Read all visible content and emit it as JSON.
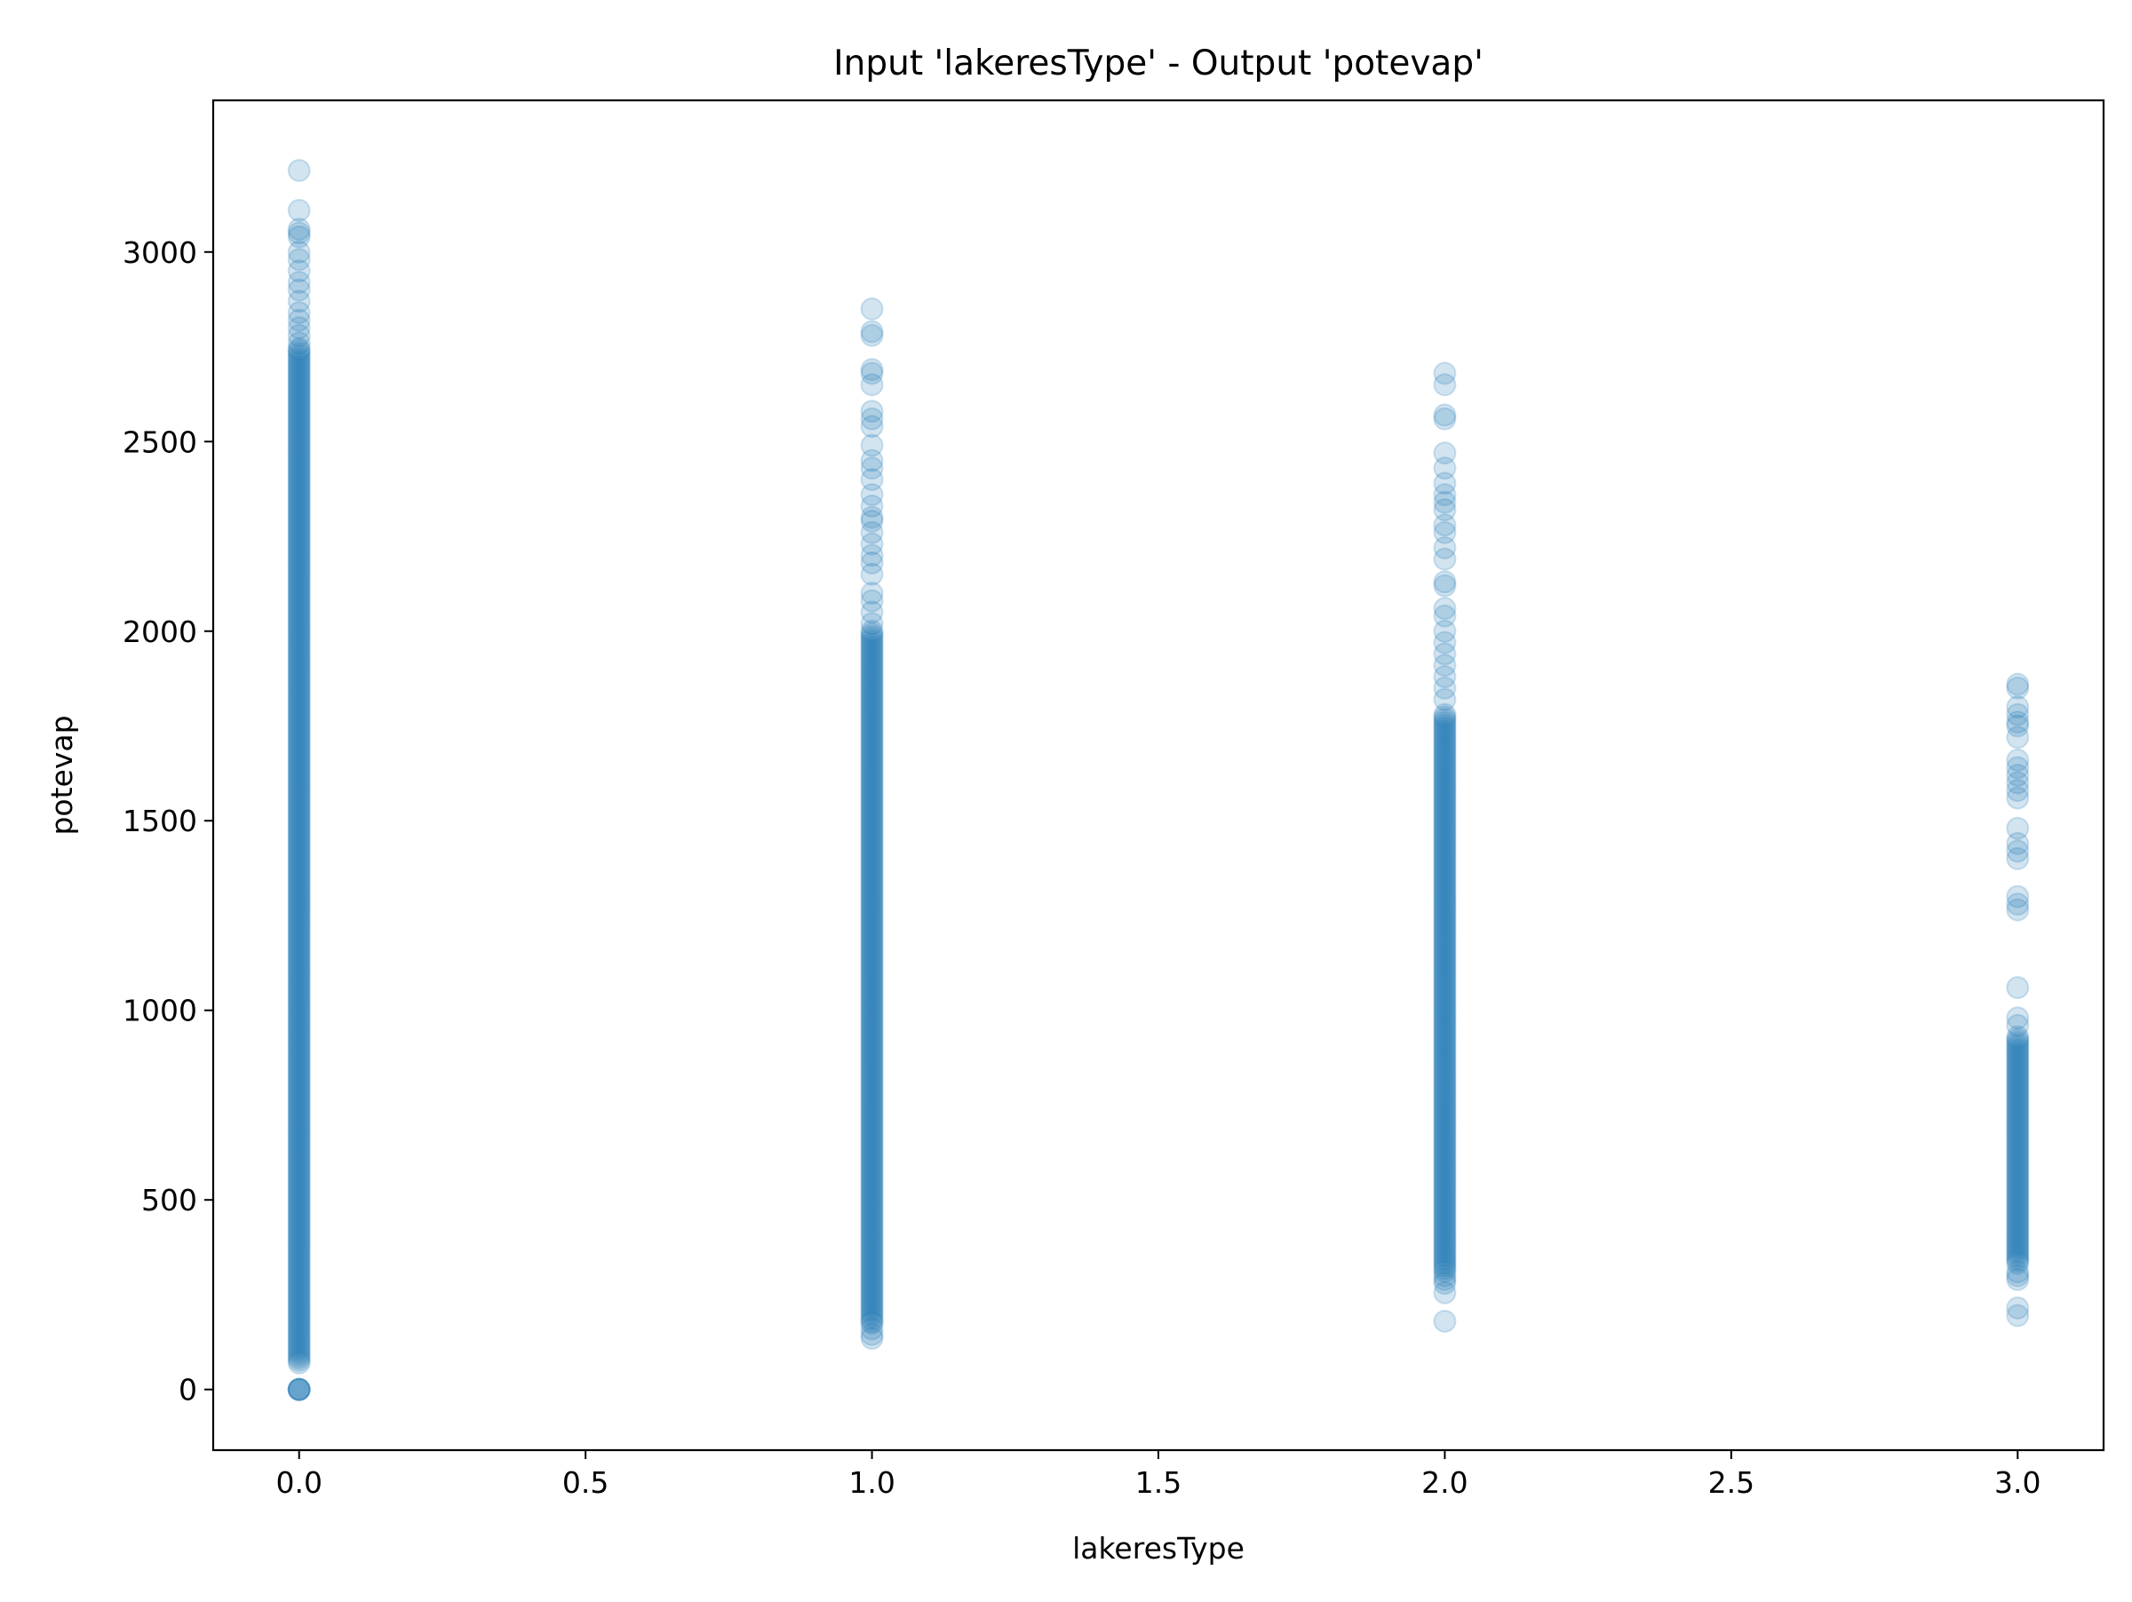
{
  "chart_data": {
    "type": "scatter",
    "title": "Input 'lakeresType' - Output 'potevap'",
    "xlabel": "lakeresType",
    "ylabel": "potevap",
    "xlim": [
      -0.15,
      3.15
    ],
    "ylim": [
      -160,
      3400
    ],
    "x_ticks": [
      0.0,
      0.5,
      1.0,
      1.5,
      2.0,
      2.5,
      3.0
    ],
    "x_tick_labels": [
      "0.0",
      "0.5",
      "1.0",
      "1.5",
      "2.0",
      "2.5",
      "3.0"
    ],
    "y_ticks": [
      0,
      500,
      1000,
      1500,
      2000,
      2500,
      3000
    ],
    "y_tick_labels": [
      "0",
      "500",
      "1000",
      "1500",
      "2000",
      "2500",
      "3000"
    ],
    "grid": false,
    "marker_color": "#1f77b4",
    "marker_alpha": 0.2,
    "groups": [
      {
        "x": 0,
        "dense_range": [
          65,
          2740
        ],
        "points": [
          0,
          0,
          0,
          0,
          0,
          2745,
          2760,
          2780,
          2800,
          2820,
          2840,
          2870,
          2900,
          2920,
          2950,
          2980,
          3000,
          3040,
          3050,
          3060,
          3110,
          3215
        ]
      },
      {
        "x": 1,
        "dense_range": [
          180,
          2000
        ],
        "points": [
          135,
          145,
          160,
          175,
          2020,
          2050,
          2080,
          2100,
          2150,
          2180,
          2200,
          2230,
          2260,
          2290,
          2300,
          2330,
          2360,
          2400,
          2430,
          2450,
          2490,
          2540,
          2560,
          2580,
          2650,
          2680,
          2690,
          2780,
          2790,
          2850
        ]
      },
      {
        "x": 2,
        "dense_range": [
          310,
          1780
        ],
        "points": [
          180,
          255,
          280,
          290,
          300,
          1820,
          1850,
          1880,
          1910,
          1940,
          1970,
          2000,
          2040,
          2060,
          2120,
          2130,
          2190,
          2220,
          2260,
          2280,
          2320,
          2340,
          2360,
          2390,
          2430,
          2470,
          2560,
          2570,
          2650,
          2680
        ]
      },
      {
        "x": 3,
        "dense_range": [
          330,
          930
        ],
        "points": [
          195,
          215,
          290,
          300,
          310,
          960,
          980,
          1060,
          1265,
          1280,
          1300,
          1400,
          1420,
          1440,
          1480,
          1560,
          1580,
          1600,
          1620,
          1640,
          1660,
          1720,
          1750,
          1760,
          1780,
          1800,
          1850,
          1860
        ]
      }
    ]
  }
}
